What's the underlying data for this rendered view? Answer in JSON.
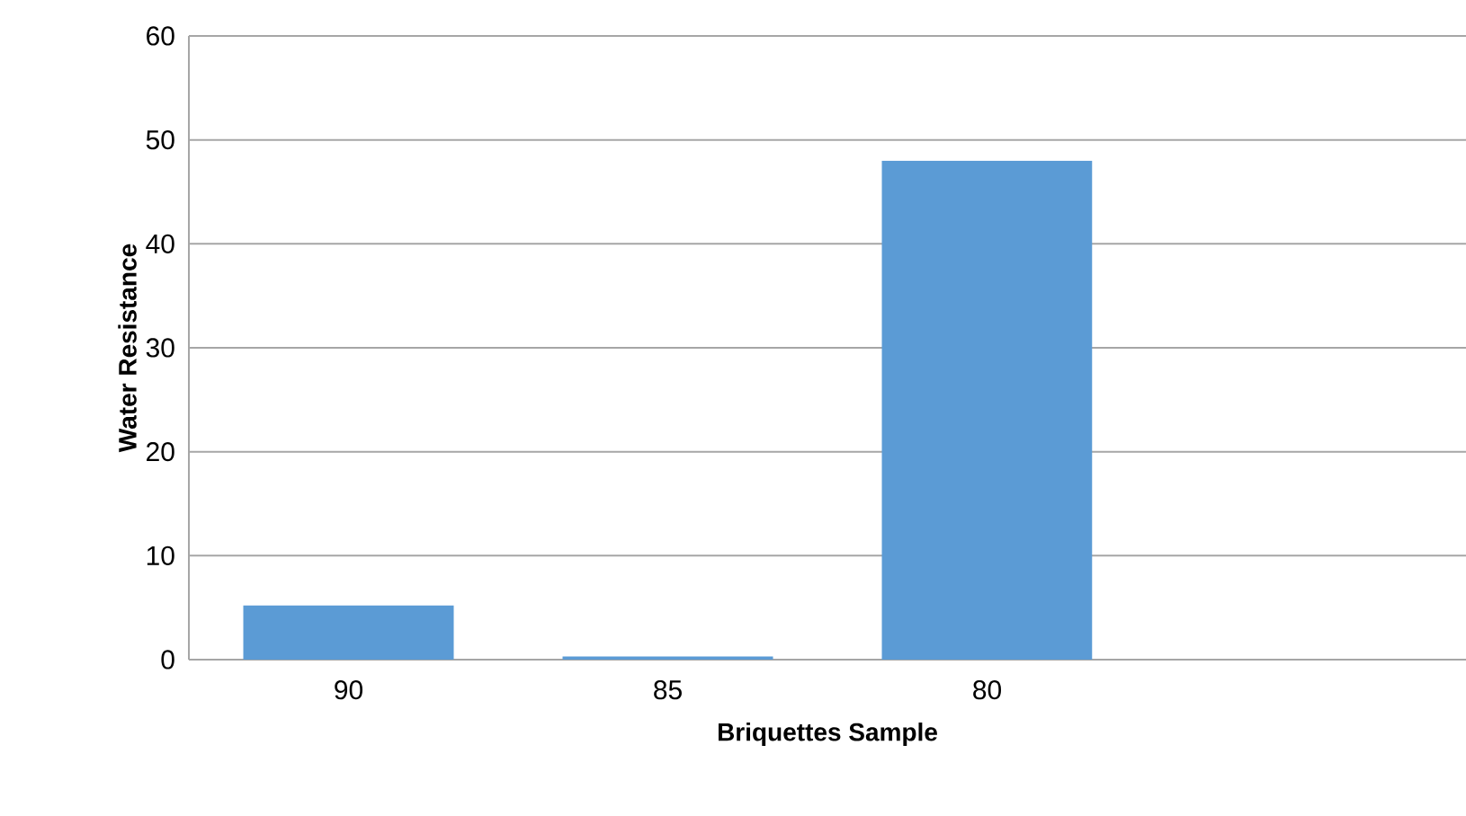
{
  "chart_data": {
    "type": "bar",
    "xlabel": "Briquettes Sample",
    "ylabel": "Water Resistance",
    "categories": [
      "90",
      "85",
      "80",
      null
    ],
    "values": [
      5.2,
      0.3,
      48,
      null
    ],
    "color": "#5b9bd5",
    "ylim": [
      0,
      60
    ],
    "yticks": [
      0,
      10,
      20,
      30,
      40,
      50,
      60
    ],
    "grid": "y"
  }
}
